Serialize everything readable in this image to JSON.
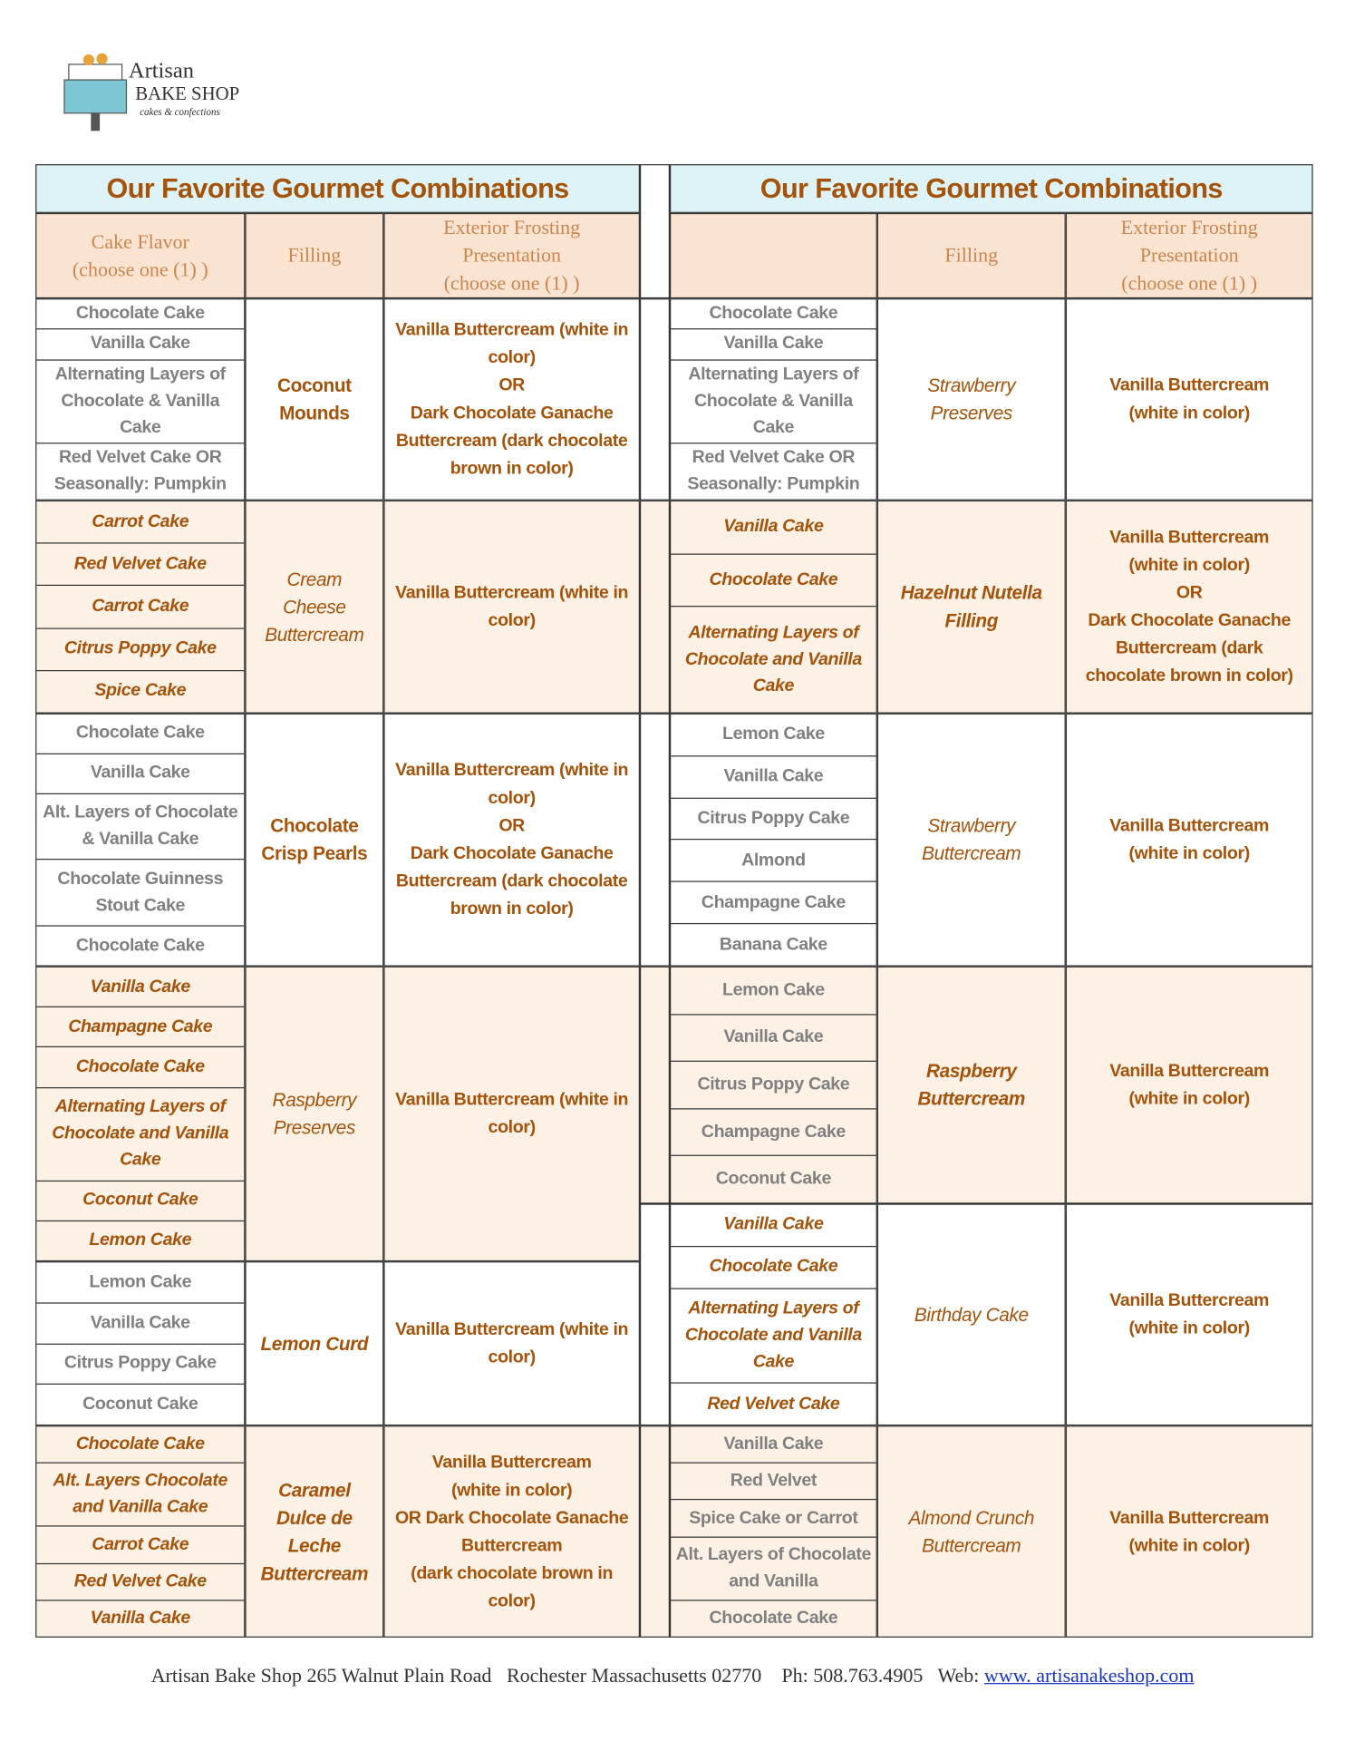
{
  "logo": {
    "line1": "Artisan",
    "line2": "BAKE SHOP",
    "line3": "cakes & confections"
  },
  "tables": [
    {
      "title": "Our Favorite Gourmet Combinations",
      "headers": {
        "flavor": "Cake Flavor\n(choose one (1) )",
        "filling": "Filling",
        "frosting": "Exterior Frosting\nPresentation\n(choose one (1) )"
      },
      "groups": [
        {
          "flavors": [
            "Chocolate Cake",
            "Vanilla Cake",
            "Alternating Layers of Chocolate & Vanilla Cake",
            "Red Velvet Cake  OR Seasonally: Pumpkin"
          ],
          "filling": "Coconut\nMounds",
          "frosting": "Vanilla Buttercream (white in color)\nOR\nDark Chocolate Ganache Buttercream (dark chocolate brown in color)"
        },
        {
          "flavors": [
            "Carrot Cake",
            "Red Velvet Cake",
            "Carrot Cake",
            "Citrus Poppy Cake",
            "Spice Cake"
          ],
          "filling": "Cream\nCheese\nButtercream",
          "frosting": "Vanilla Buttercream (white in color)"
        },
        {
          "flavors": [
            "Chocolate Cake",
            "Vanilla Cake",
            "Alt. Layers of Chocolate & Vanilla Cake",
            "Chocolate Guinness Stout Cake",
            "Chocolate Cake"
          ],
          "filling": "Chocolate\nCrisp Pearls",
          "frosting": "Vanilla Buttercream (white in color)\nOR\nDark Chocolate Ganache Buttercream (dark chocolate brown in color)"
        },
        {
          "flavors": [
            "Vanilla Cake",
            "Champagne Cake",
            "Chocolate Cake",
            "Alternating Layers of Chocolate and Vanilla Cake",
            "Coconut Cake",
            "Lemon Cake"
          ],
          "filling": "Raspberry\nPreserves",
          "frosting": "Vanilla Buttercream (white in color)"
        },
        {
          "flavors": [
            "Lemon Cake",
            "Vanilla Cake",
            "Citrus Poppy Cake",
            "Coconut Cake"
          ],
          "filling": "Lemon Curd",
          "frosting": "Vanilla Buttercream (white in color)"
        },
        {
          "flavors": [
            "Chocolate Cake",
            "Alt. Layers Chocolate and Vanilla Cake",
            "Carrot Cake",
            "Red Velvet Cake",
            "Vanilla Cake"
          ],
          "filling": "Caramel\nDulce de\nLeche\nButtercream",
          "frosting": "Vanilla Buttercream\n(white in color)\nOR   Dark Chocolate Ganache\nButtercream\n(dark chocolate brown in\ncolor)"
        }
      ]
    },
    {
      "title": "Our Favorite Gourmet Combinations",
      "headers": {
        "filling": "Filling",
        "frosting": "Exterior Frosting\nPresentation\n(choose one (1) )"
      },
      "groups": [
        {
          "flavors": [
            "Chocolate Cake",
            "Vanilla Cake",
            "Alternating Layers of Chocolate & Vanilla Cake",
            "Red Velvet Cake  OR Seasonally: Pumpkin"
          ],
          "filling": "Strawberry\nPreserves",
          "frosting": "Vanilla Buttercream\n(white in color)"
        },
        {
          "flavors": [
            "Vanilla Cake",
            "Chocolate Cake",
            "Alternating Layers of Chocolate and Vanilla Cake"
          ],
          "filling": "Hazelnut Nutella\nFilling",
          "frosting": "Vanilla Buttercream\n(white in color)\nOR\nDark Chocolate Ganache\nButtercream (dark\nchocolate brown in color)"
        },
        {
          "flavors": [
            "Lemon Cake",
            "Vanilla Cake",
            "Citrus Poppy Cake",
            "Almond",
            "Champagne Cake",
            "Banana Cake"
          ],
          "filling": "Strawberry\nButtercream",
          "frosting": "Vanilla Buttercream\n(white in color)"
        },
        {
          "flavors": [
            "Lemon Cake",
            "Vanilla Cake",
            "Citrus Poppy Cake",
            "Champagne Cake",
            "Coconut Cake"
          ],
          "filling": "Raspberry\nButtercream",
          "frosting": "Vanilla Buttercream\n(white in color)"
        },
        {
          "flavors": [
            "Vanilla Cake",
            "Chocolate Cake",
            "Alternating Layers of Chocolate and Vanilla Cake",
            "Red Velvet Cake"
          ],
          "filling": "Birthday Cake",
          "frosting": "Vanilla Buttercream\n(white in color)"
        },
        {
          "flavors": [
            "Vanilla Cake",
            "Red Velvet",
            "Spice Cake or Carrot",
            "Alt. Layers of Chocolate and Vanilla",
            "Chocolate Cake"
          ],
          "filling": "Almond Crunch\nButtercream",
          "frosting": "Vanilla Buttercream\n(white in color)"
        }
      ]
    }
  ],
  "footer": {
    "address": "Artisan Bake Shop 265 Walnut Plain Road   Rochester Massachusetts 02770",
    "phone": "Ph: 508.763.4905",
    "web_label": "Web:",
    "web": "www. artisanakeshop.com"
  }
}
